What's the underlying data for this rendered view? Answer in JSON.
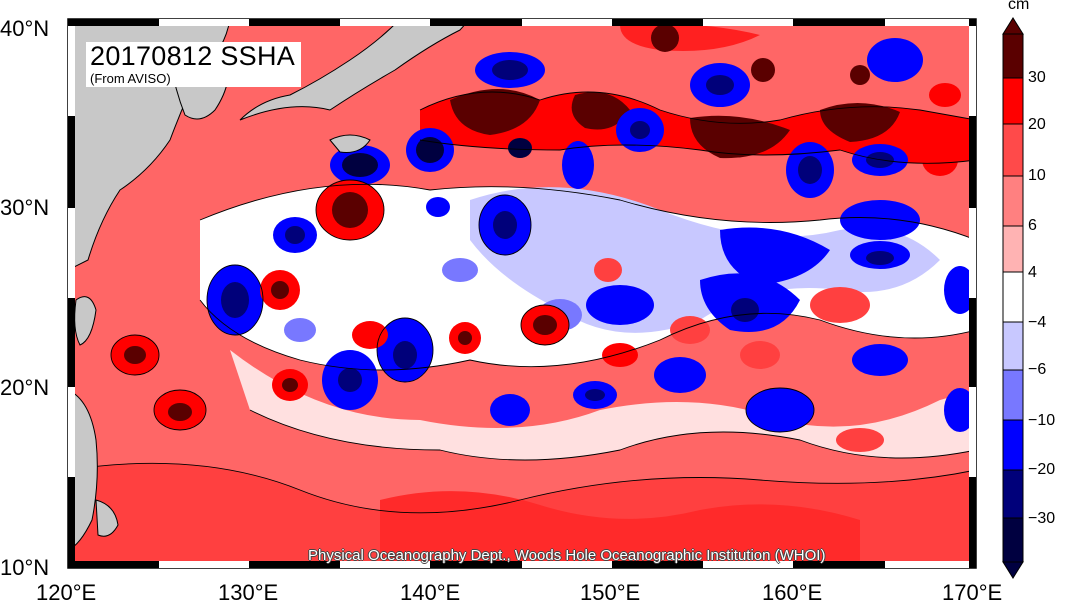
{
  "map": {
    "title": "20170812 SSHA",
    "subtitle": "(From AVISO)",
    "credit": "Physical Oceanography Dept., Woods Hole Oceanographic Institution (WHOI)"
  },
  "axes": {
    "lon_labels": [
      "120°E",
      "130°E",
      "140°E",
      "150°E",
      "160°E",
      "170°E"
    ],
    "lat_labels": [
      "40°N",
      "30°N",
      "20°N",
      "10°N"
    ],
    "lon_range": [
      120,
      170
    ],
    "lat_range": [
      10,
      40
    ]
  },
  "colorbar": {
    "unit": "cm",
    "labels": [
      "30",
      "20",
      "10",
      "6",
      "4",
      "−4",
      "−6",
      "−10",
      "−20",
      "−30"
    ],
    "colors": {
      "above_30": "#5a0000",
      "20_30": "#ff0000",
      "10_20": "#ff4a4a",
      "6_10": "#ff8080",
      "4_6": "#ffb3b3",
      "m4_4": "#ffffff",
      "m6_m4": "#c8c8ff",
      "m10_m6": "#7878ff",
      "m20_m10": "#0000ff",
      "m30_m20": "#00007a",
      "below_m30": "#000040"
    },
    "land": "#c8c8c8"
  }
}
